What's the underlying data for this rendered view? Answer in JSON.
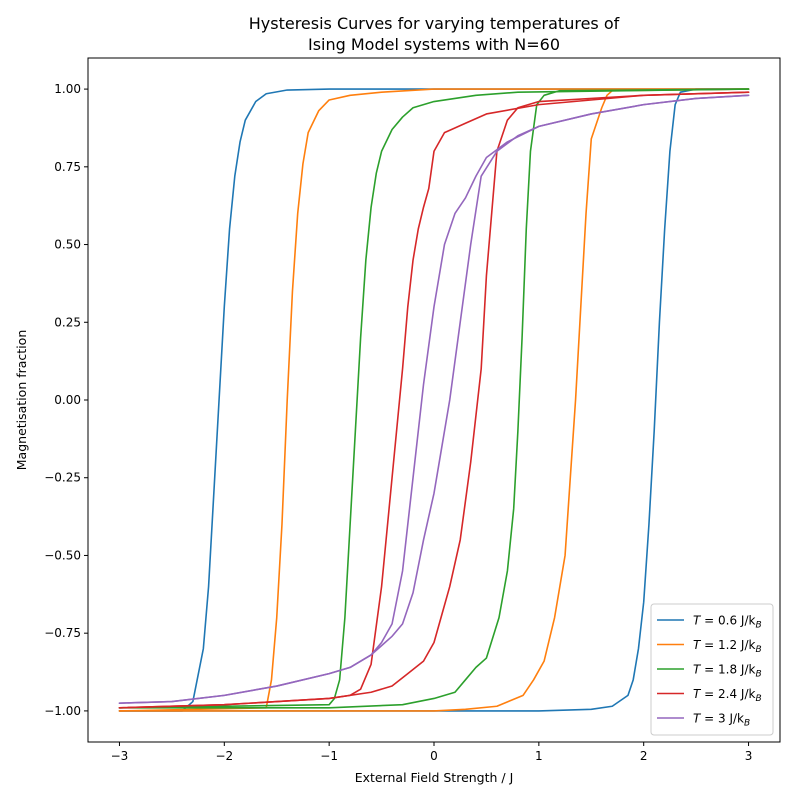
{
  "chart_data": {
    "type": "line",
    "title_line1": "Hysteresis Curves for varying temperatures of",
    "title_line2": "Ising Model systems with N=60",
    "xlabel": "External Field Strength / J",
    "ylabel": "Magnetisation fraction",
    "xlim": [
      -3.3,
      3.3
    ],
    "ylim": [
      -1.1,
      1.1
    ],
    "xticks": [
      -3,
      -2,
      -1,
      0,
      1,
      2,
      3
    ],
    "xtick_labels": [
      "−3",
      "−2",
      "−1",
      "0",
      "1",
      "2",
      "3"
    ],
    "yticks": [
      1.0,
      0.75,
      0.5,
      0.25,
      0.0,
      -0.25,
      -0.5,
      -0.75,
      -1.0
    ],
    "ytick_labels": [
      "1.00",
      "0.75",
      "0.50",
      "0.25",
      "0.00",
      "−0.25",
      "−0.50",
      "−0.75",
      "−1.00"
    ],
    "grid": false,
    "legend_position": "lower-right",
    "series": [
      {
        "name": "T = 0.6 J/k_B",
        "legend_T": "0.6",
        "color": "#1f77b4",
        "forward": [
          [
            -3,
            -1
          ],
          [
            -2.4,
            -1
          ],
          [
            -2.3,
            -0.97
          ],
          [
            -2.2,
            -0.8
          ],
          [
            -2.15,
            -0.6
          ],
          [
            -2.1,
            -0.3
          ],
          [
            -2.05,
            0.0
          ],
          [
            -2.0,
            0.3
          ],
          [
            -1.95,
            0.55
          ],
          [
            -1.9,
            0.72
          ],
          [
            -1.85,
            0.83
          ],
          [
            -1.8,
            0.9
          ],
          [
            -1.7,
            0.96
          ],
          [
            -1.6,
            0.985
          ],
          [
            -1.4,
            0.997
          ],
          [
            -1.0,
            1.0
          ],
          [
            3,
            1.0
          ]
        ],
        "backward": [
          [
            3,
            1.0
          ],
          [
            2.5,
            1.0
          ],
          [
            2.35,
            0.99
          ],
          [
            2.3,
            0.95
          ],
          [
            2.25,
            0.8
          ],
          [
            2.2,
            0.55
          ],
          [
            2.15,
            0.25
          ],
          [
            2.1,
            -0.1
          ],
          [
            2.05,
            -0.4
          ],
          [
            2.0,
            -0.65
          ],
          [
            1.95,
            -0.8
          ],
          [
            1.9,
            -0.9
          ],
          [
            1.85,
            -0.95
          ],
          [
            1.7,
            -0.985
          ],
          [
            1.5,
            -0.995
          ],
          [
            1.0,
            -1.0
          ],
          [
            -3,
            -1.0
          ]
        ]
      },
      {
        "name": "T = 1.2 J/k_B",
        "legend_T": "1.2",
        "color": "#ff7f0e",
        "forward": [
          [
            -3,
            -1
          ],
          [
            -1.6,
            -0.99
          ],
          [
            -1.55,
            -0.9
          ],
          [
            -1.5,
            -0.7
          ],
          [
            -1.45,
            -0.4
          ],
          [
            -1.4,
            0.0
          ],
          [
            -1.35,
            0.35
          ],
          [
            -1.3,
            0.6
          ],
          [
            -1.25,
            0.76
          ],
          [
            -1.2,
            0.86
          ],
          [
            -1.1,
            0.93
          ],
          [
            -1.0,
            0.965
          ],
          [
            -0.8,
            0.98
          ],
          [
            -0.5,
            0.99
          ],
          [
            0,
            1.0
          ],
          [
            3,
            1.0
          ]
        ],
        "backward": [
          [
            3,
            1.0
          ],
          [
            1.7,
            0.995
          ],
          [
            1.65,
            0.98
          ],
          [
            1.6,
            0.94
          ],
          [
            1.5,
            0.84
          ],
          [
            1.45,
            0.6
          ],
          [
            1.4,
            0.3
          ],
          [
            1.35,
            0.0
          ],
          [
            1.3,
            -0.25
          ],
          [
            1.25,
            -0.5
          ],
          [
            1.15,
            -0.7
          ],
          [
            1.05,
            -0.84
          ],
          [
            0.95,
            -0.9
          ],
          [
            0.85,
            -0.95
          ],
          [
            0.6,
            -0.985
          ],
          [
            0.3,
            -0.995
          ],
          [
            0,
            -1.0
          ],
          [
            -3,
            -1.0
          ]
        ]
      },
      {
        "name": "T = 1.8 J/k_B",
        "legend_T": "1.8",
        "color": "#2ca02c",
        "forward": [
          [
            -3,
            -0.99
          ],
          [
            -1.0,
            -0.98
          ],
          [
            -0.95,
            -0.96
          ],
          [
            -0.9,
            -0.9
          ],
          [
            -0.85,
            -0.7
          ],
          [
            -0.8,
            -0.4
          ],
          [
            -0.75,
            -0.1
          ],
          [
            -0.7,
            0.2
          ],
          [
            -0.65,
            0.45
          ],
          [
            -0.6,
            0.62
          ],
          [
            -0.55,
            0.73
          ],
          [
            -0.5,
            0.8
          ],
          [
            -0.4,
            0.87
          ],
          [
            -0.3,
            0.91
          ],
          [
            -0.2,
            0.94
          ],
          [
            0,
            0.96
          ],
          [
            0.4,
            0.98
          ],
          [
            0.8,
            0.99
          ],
          [
            3,
            1.0
          ]
        ],
        "backward": [
          [
            3,
            1.0
          ],
          [
            1.2,
            0.995
          ],
          [
            1.05,
            0.98
          ],
          [
            0.98,
            0.95
          ],
          [
            0.92,
            0.8
          ],
          [
            0.88,
            0.55
          ],
          [
            0.84,
            0.2
          ],
          [
            0.8,
            -0.1
          ],
          [
            0.76,
            -0.35
          ],
          [
            0.7,
            -0.55
          ],
          [
            0.62,
            -0.7
          ],
          [
            0.5,
            -0.83
          ],
          [
            0.4,
            -0.86
          ],
          [
            0.3,
            -0.9
          ],
          [
            0.2,
            -0.94
          ],
          [
            0.0,
            -0.96
          ],
          [
            -0.3,
            -0.98
          ],
          [
            -1.0,
            -0.99
          ],
          [
            -3,
            -0.99
          ]
        ]
      },
      {
        "name": "T = 2.4 J/k_B",
        "legend_T": "2.4",
        "color": "#d62728",
        "forward": [
          [
            -3,
            -0.99
          ],
          [
            -2.0,
            -0.98
          ],
          [
            -1.5,
            -0.97
          ],
          [
            -1.0,
            -0.96
          ],
          [
            -0.8,
            -0.95
          ],
          [
            -0.7,
            -0.93
          ],
          [
            -0.6,
            -0.85
          ],
          [
            -0.5,
            -0.6
          ],
          [
            -0.4,
            -0.25
          ],
          [
            -0.3,
            0.1
          ],
          [
            -0.25,
            0.3
          ],
          [
            -0.2,
            0.45
          ],
          [
            -0.15,
            0.55
          ],
          [
            -0.1,
            0.62
          ],
          [
            -0.05,
            0.68
          ],
          [
            0,
            0.8
          ],
          [
            0.1,
            0.86
          ],
          [
            0.3,
            0.89
          ],
          [
            0.5,
            0.92
          ],
          [
            1.0,
            0.95
          ],
          [
            2.0,
            0.98
          ],
          [
            3,
            0.99
          ]
        ],
        "backward": [
          [
            3,
            0.99
          ],
          [
            2.0,
            0.98
          ],
          [
            1.0,
            0.96
          ],
          [
            0.8,
            0.94
          ],
          [
            0.7,
            0.9
          ],
          [
            0.6,
            0.8
          ],
          [
            0.55,
            0.6
          ],
          [
            0.5,
            0.4
          ],
          [
            0.45,
            0.1
          ],
          [
            0.35,
            -0.2
          ],
          [
            0.25,
            -0.45
          ],
          [
            0.15,
            -0.6
          ],
          [
            0.05,
            -0.72
          ],
          [
            0,
            -0.78
          ],
          [
            -0.1,
            -0.84
          ],
          [
            -0.25,
            -0.88
          ],
          [
            -0.4,
            -0.92
          ],
          [
            -0.6,
            -0.94
          ],
          [
            -1.0,
            -0.96
          ],
          [
            -2.0,
            -0.98
          ],
          [
            -3,
            -0.99
          ]
        ]
      },
      {
        "name": "T = 3 J/k_B",
        "legend_T": "3",
        "color": "#9467bd",
        "forward": [
          [
            -3,
            -0.975
          ],
          [
            -2.5,
            -0.97
          ],
          [
            -2.0,
            -0.95
          ],
          [
            -1.5,
            -0.92
          ],
          [
            -1.0,
            -0.88
          ],
          [
            -0.8,
            -0.86
          ],
          [
            -0.6,
            -0.82
          ],
          [
            -0.5,
            -0.78
          ],
          [
            -0.4,
            -0.72
          ],
          [
            -0.3,
            -0.55
          ],
          [
            -0.2,
            -0.25
          ],
          [
            -0.1,
            0.05
          ],
          [
            0,
            0.3
          ],
          [
            0.1,
            0.5
          ],
          [
            0.2,
            0.6
          ],
          [
            0.3,
            0.65
          ],
          [
            0.4,
            0.72
          ],
          [
            0.5,
            0.78
          ],
          [
            0.7,
            0.83
          ],
          [
            1.0,
            0.88
          ],
          [
            1.5,
            0.92
          ],
          [
            2.0,
            0.95
          ],
          [
            2.5,
            0.97
          ],
          [
            3,
            0.98
          ]
        ],
        "backward": [
          [
            3,
            0.98
          ],
          [
            2.5,
            0.97
          ],
          [
            2.0,
            0.95
          ],
          [
            1.5,
            0.92
          ],
          [
            1.0,
            0.88
          ],
          [
            0.8,
            0.85
          ],
          [
            0.6,
            0.8
          ],
          [
            0.45,
            0.72
          ],
          [
            0.35,
            0.5
          ],
          [
            0.25,
            0.25
          ],
          [
            0.15,
            0.0
          ],
          [
            0.05,
            -0.2
          ],
          [
            0,
            -0.3
          ],
          [
            -0.1,
            -0.45
          ],
          [
            -0.2,
            -0.62
          ],
          [
            -0.3,
            -0.72
          ],
          [
            -0.4,
            -0.76
          ],
          [
            -0.6,
            -0.82
          ],
          [
            -0.8,
            -0.86
          ],
          [
            -1.0,
            -0.88
          ],
          [
            -1.5,
            -0.92
          ],
          [
            -2.0,
            -0.95
          ],
          [
            -2.5,
            -0.97
          ],
          [
            -3,
            -0.975
          ]
        ]
      }
    ]
  }
}
